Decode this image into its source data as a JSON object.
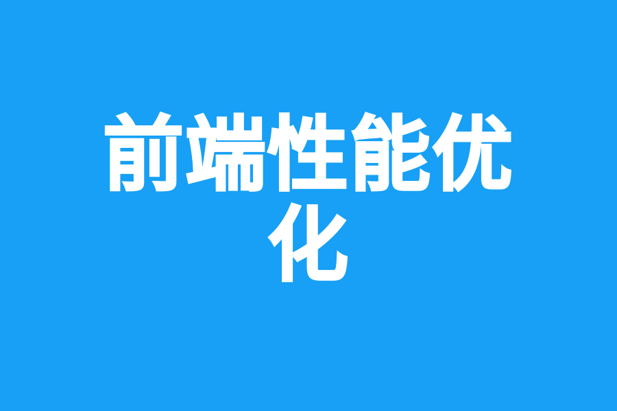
{
  "background_color": "#17a0f5",
  "text_color": "#ffffff",
  "title": {
    "line1": "前端性能优",
    "line2": "化"
  }
}
